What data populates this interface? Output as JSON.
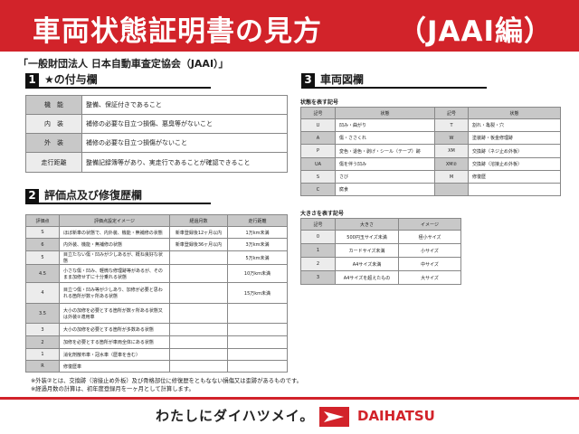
{
  "header": {
    "title": "車両状態証明書の見方",
    "edition": "（JAAI編）"
  },
  "subtitle": "「一般財団法人 日本自動車査定協会（JAAI）」",
  "section1": {
    "num": "1",
    "title": "★の付与欄",
    "rows": [
      [
        "機　能",
        "整備、保証付きであること"
      ],
      [
        "内　装",
        "補修の必要な目立つ損傷、悪臭等がないこと"
      ],
      [
        "外　装",
        "補修の必要な目立つ損傷がないこと"
      ],
      [
        "走行距離",
        "整備記録簿等があり、実走行であることが確認できること"
      ]
    ]
  },
  "section2": {
    "num": "2",
    "title": "評価点及び修復歴欄",
    "headers": [
      "評価点",
      "評価点設定イメージ",
      "経過月数",
      "走行距離"
    ],
    "rows": [
      [
        "S",
        "ほぼ新車の状態で、内外装、機能・無補修の状態",
        "新車登録後12ヶ月以内",
        "1万km未満"
      ],
      [
        "6",
        "内外装、機能・無補修の状態",
        "新車登録後36ヶ月以内",
        "3万km未満"
      ],
      [
        "5",
        "目立たない傷・凹みが少しあるが、概ね良好な状態",
        "",
        "5万km未満"
      ],
      [
        "4.5",
        "小さな傷・凹み、軽微な修理跡等があるが、そのまま加修せずに十分乗れる状態",
        "",
        "10万km未満"
      ],
      [
        "4",
        "目立つ傷・凹み等が少しあり、加修が必要と思われる箇所が数ヶ所ある状態",
        "",
        "15万km未満"
      ],
      [
        "3.5",
        "大小の加修を必要とする箇所が数ヶ所ある状態又は外装②適用車",
        "",
        ""
      ],
      [
        "3",
        "大小の加修を必要とする箇所が多数ある状態",
        "",
        ""
      ],
      [
        "2",
        "加修を必要とする箇所が車両全体にある状態",
        "",
        ""
      ],
      [
        "1",
        "消化剤散布車・冠水車（歴車を含む）",
        "",
        ""
      ],
      [
        "R",
        "修復歴車",
        "",
        ""
      ]
    ]
  },
  "notes": [
    "※外装②とは、交換跡（溶接止め外板）及び骨格部位に修復歴をともなない損傷又は歪跡があるものです。",
    "※経過月数の計算は、初年度登録月を一ヶ月として計算します。"
  ],
  "section3": {
    "num": "3",
    "title": "車両図欄",
    "state_label": "状態を表す記号",
    "state_headers": [
      "記号",
      "状態",
      "記号",
      "状態"
    ],
    "state_rows": [
      [
        "U",
        "凹み・曲がり",
        "T",
        "割れ・亀裂・穴"
      ],
      [
        "A",
        "傷・ささくれ",
        "W",
        "塗装跡・板金修理跡"
      ],
      [
        "P",
        "変色・退色・剥げ・シール（テープ）跡",
        "XM",
        "交換跡（ネジ止め外板）"
      ],
      [
        "UA",
        "傷を伴う凹み",
        "XM②",
        "交換跡（溶接止め外板）"
      ],
      [
        "S",
        "さび",
        "M",
        "修復歴"
      ],
      [
        "C",
        "腐食",
        "",
        ""
      ]
    ],
    "size_label": "大きさを表す記号",
    "size_headers": [
      "記号",
      "大きさ",
      "イメージ"
    ],
    "size_rows": [
      [
        "0",
        "500円玉サイズ未満",
        "極小サイズ"
      ],
      [
        "1",
        "カードサイズ未満",
        "小サイズ"
      ],
      [
        "2",
        "A4サイズ未満",
        "中サイズ"
      ],
      [
        "3",
        "A4サイズを超えたもの",
        "大サイズ"
      ]
    ]
  },
  "footer": {
    "slogan": "わたしにダイハツメイ。",
    "brand": "DAIHATSU"
  },
  "colors": {
    "brand_red": "#d2232a",
    "cell_gray": "#c8c8c8",
    "cell_light": "#ececec"
  }
}
